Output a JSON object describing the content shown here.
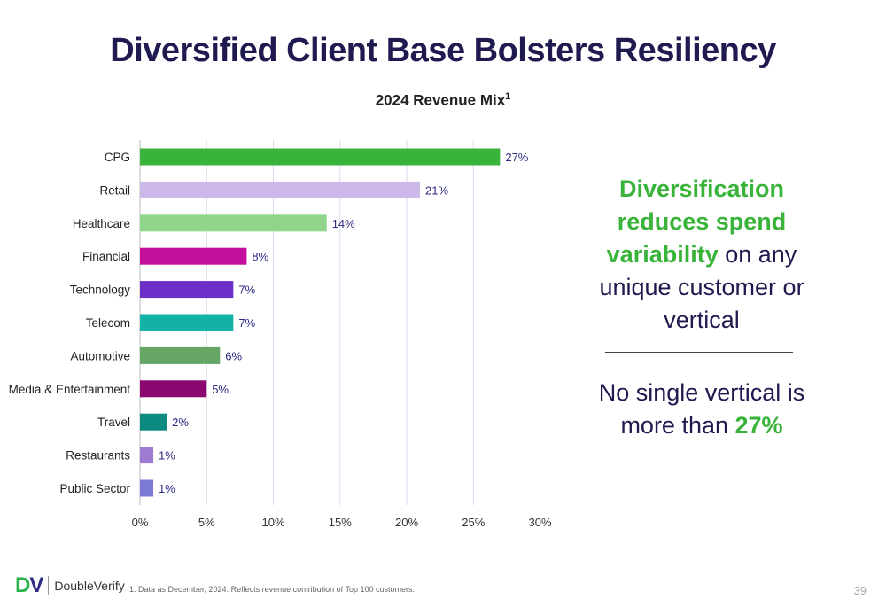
{
  "title": "Diversified Client Base Bolsters Resiliency",
  "chart_data": {
    "type": "bar",
    "orientation": "horizontal",
    "title": "2024 Revenue Mix",
    "title_superscript": "1",
    "categories": [
      "CPG",
      "Retail",
      "Healthcare",
      "Financial",
      "Technology",
      "Telecom",
      "Automotive",
      "Media & Entertainment",
      "Travel",
      "Restaurants",
      "Public Sector"
    ],
    "values": [
      27,
      21,
      14,
      8,
      7,
      7,
      6,
      5,
      2,
      1,
      1
    ],
    "data_labels": [
      "27%",
      "21%",
      "14%",
      "8%",
      "7%",
      "7%",
      "6%",
      "5%",
      "2%",
      "1%",
      "1%"
    ],
    "colors": [
      "#3ab33a",
      "#cdb8ea",
      "#8fd68a",
      "#c40e9c",
      "#6c2fc7",
      "#12b3a6",
      "#66a665",
      "#8c0870",
      "#0b8a80",
      "#9d7bd0",
      "#7b78d6"
    ],
    "xlim": [
      0,
      30
    ],
    "xticks": [
      "0%",
      "5%",
      "10%",
      "15%",
      "20%",
      "25%",
      "30%"
    ],
    "xtick_values": [
      0,
      5,
      10,
      15,
      20,
      25,
      30
    ],
    "grid": "vertical",
    "xlabel": "",
    "ylabel": ""
  },
  "callout": {
    "line_hl": "Diversification reduces spend variability",
    "line_rest": " on any unique customer or vertical"
  },
  "callout2": {
    "text": "No single vertical is more than ",
    "highlight": "27%"
  },
  "logo": {
    "mark_d": "D",
    "mark_v": "V",
    "name": "DoubleVerify"
  },
  "footnote": "1. Data as December, 2024. Reflects revenue contribution of Top 100 customers.",
  "page_number": "39"
}
